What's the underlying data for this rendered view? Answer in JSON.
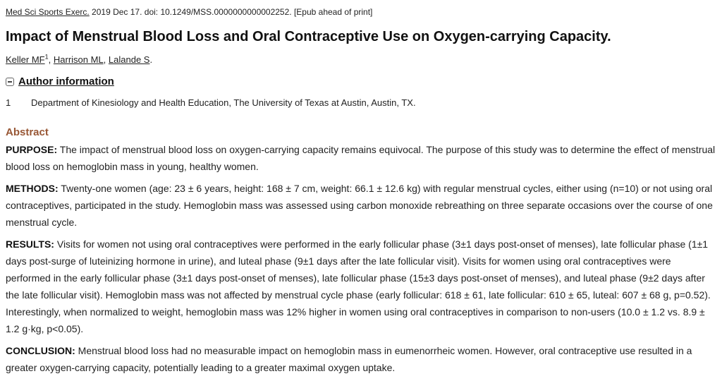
{
  "citation": {
    "journal": "Med Sci Sports Exerc.",
    "details": " 2019 Dec 17. doi: 10.1249/MSS.0000000000002252. [Epub ahead of print]"
  },
  "article": {
    "title": "Impact of Menstrual Blood Loss and Oral Contraceptive Use on Oxygen-carrying Capacity."
  },
  "authors": {
    "list": [
      {
        "name": "Keller MF",
        "sup": "1",
        "sep": ", "
      },
      {
        "name": "Harrison ML",
        "sup": "",
        "sep": ", "
      },
      {
        "name": "Lalande S",
        "sup": "",
        "sep": "."
      }
    ]
  },
  "author_information": {
    "label": "Author information",
    "affiliations": [
      {
        "num": "1",
        "text": "Department of Kinesiology and Health Education, The University of Texas at Austin, Austin, TX."
      }
    ]
  },
  "abstract": {
    "heading": "Abstract",
    "sections": [
      {
        "label": "PURPOSE:",
        "text": " The impact of menstrual blood loss on oxygen-carrying capacity remains equivocal. The purpose of this study was to determine the effect of menstrual blood loss on hemoglobin mass in young, healthy women."
      },
      {
        "label": "METHODS:",
        "text": " Twenty-one women (age: 23 ± 6 years, height: 168 ± 7 cm, weight: 66.1 ± 12.6 kg) with regular menstrual cycles, either using (n=10) or not using oral contraceptives, participated in the study. Hemoglobin mass was assessed using carbon monoxide rebreathing on three separate occasions over the course of one menstrual cycle."
      },
      {
        "label": "RESULTS:",
        "text": " Visits for women not using oral contraceptives were performed in the early follicular phase (3±1 days post-onset of menses), late follicular phase (1±1 days post-surge of luteinizing hormone in urine), and luteal phase (9±1 days after the late follicular visit). Visits for women using oral contraceptives were performed in the early follicular phase (3±1 days post-onset of menses), late follicular phase (15±3 days post-onset of menses), and luteal phase (9±2 days after the late follicular visit). Hemoglobin mass was not affected by menstrual cycle phase (early follicular: 618 ± 61, late follicular: 610 ± 65, luteal: 607 ± 68 g, p=0.52). Interestingly, when normalized to weight, hemoglobin mass was 12% higher in women using oral contraceptives in comparison to non-users (10.0 ± 1.2 vs. 8.9 ± 1.2 g·kg, p<0.05)."
      },
      {
        "label": "CONCLUSION:",
        "text": " Menstrual blood loss had no measurable impact on hemoglobin mass in eumenorrheic women. However, oral contraceptive use resulted in a greater oxygen-carrying capacity, potentially leading to a greater maximal oxygen uptake."
      }
    ]
  },
  "colors": {
    "abstract_heading": "#985735",
    "text": "#222222"
  }
}
